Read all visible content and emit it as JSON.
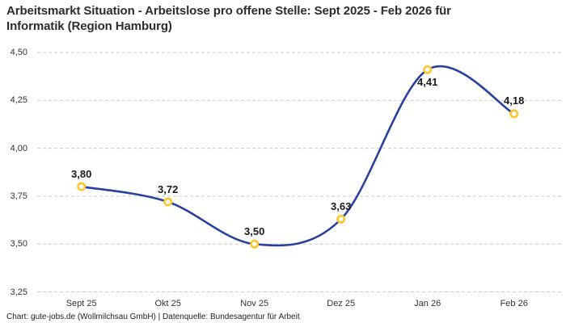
{
  "title": {
    "line1": "Arbeitsmarkt Situation - Arbeitslose pro offene Stelle: Sept 2025 - Feb 2026 für",
    "line2": "Informatik (Region Hamburg)"
  },
  "footer": {
    "text": "Chart: gute-jobs.de (Wollmilchsau GmbH) | Datenquelle: Bundesagentur für Arbeit"
  },
  "colors": {
    "line": "#28409F",
    "marker_ring": "#FFC52B",
    "marker_fill": "#ffffff",
    "gridline": "#c9c9c9",
    "title_text": "#2d2d2d",
    "axis_text": "#333333",
    "value_label_text": "#1a1a1a",
    "footer_text": "#222222",
    "background": "#ffffff"
  },
  "chart_data": {
    "type": "line",
    "title": "Arbeitsmarkt Situation - Arbeitslose pro offene Stelle: Sept 2025 - Feb 2026 für Informatik (Region Hamburg)",
    "categories": [
      "Sept 25",
      "Okt 25",
      "Nov 25",
      "Dez 25",
      "Jan 26",
      "Feb 26"
    ],
    "values": [
      3.8,
      3.72,
      3.5,
      3.63,
      4.41,
      4.18
    ],
    "value_labels": [
      "3,80",
      "3,72",
      "3,50",
      "3,63",
      "4,41",
      "4,18"
    ],
    "value_label_positions": [
      "above",
      "above",
      "above",
      "above",
      "below",
      "above"
    ],
    "y_ticks": [
      {
        "value": 4.5,
        "label": "4,50"
      },
      {
        "value": 4.25,
        "label": "4,25"
      },
      {
        "value": 4.0,
        "label": "4,00"
      },
      {
        "value": 3.75,
        "label": "3,75"
      },
      {
        "value": 3.5,
        "label": "3,50"
      },
      {
        "value": 3.25,
        "label": "3,25"
      }
    ],
    "ylim": [
      3.25,
      4.5
    ],
    "xlabel": "",
    "ylabel": "",
    "grid": "horizontal-dashed",
    "legend": "none",
    "curve": "smooth"
  }
}
